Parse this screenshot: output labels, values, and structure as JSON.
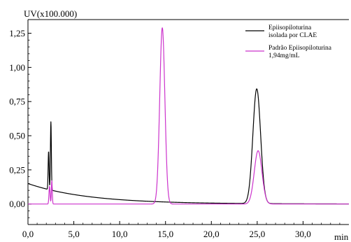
{
  "chart_data": {
    "type": "line",
    "ylabel": "UV(x100.000)",
    "xlabel": "min",
    "xlim": [
      0,
      35
    ],
    "ylim": [
      -0.15,
      1.35
    ],
    "x_ticks": [
      0,
      5,
      10,
      15,
      20,
      25,
      30
    ],
    "x_tick_labels": [
      "0,0",
      "5,0",
      "10,0",
      "15,0",
      "20,0",
      "25,0",
      "30,0"
    ],
    "y_ticks": [
      0,
      0.25,
      0.5,
      0.75,
      1.0,
      1.25
    ],
    "y_tick_labels": [
      "0,00",
      "0,25",
      "0,50",
      "0,75",
      "1,00",
      "1,25"
    ],
    "grid": false,
    "legend_position": "top-right",
    "series": [
      {
        "name": "Epiisopiloturina isolada por CLAE",
        "color": "#000000",
        "baseline": {
          "start": 0.15,
          "end": 0.0,
          "decay_tau": 6.5
        },
        "peaks": [
          {
            "x": 2.25,
            "height": 0.28,
            "width": 0.05
          },
          {
            "x": 2.5,
            "height": 0.5,
            "width": 0.05
          },
          {
            "x": 24.95,
            "height": 0.84,
            "width": 0.42
          }
        ]
      },
      {
        "name": "Padrão Epiisopiloturina\n1,94mg/mL",
        "color": "#cc33cc",
        "baseline": {
          "start": 0.0,
          "end": 0.0,
          "decay_tau": 1
        },
        "peaks": [
          {
            "x": 2.35,
            "height": 0.13,
            "width": 0.06
          },
          {
            "x": 2.6,
            "height": 0.17,
            "width": 0.05
          },
          {
            "x": 14.65,
            "height": 1.29,
            "width": 0.28
          },
          {
            "x": 25.1,
            "height": 0.39,
            "width": 0.42
          }
        ]
      }
    ]
  }
}
